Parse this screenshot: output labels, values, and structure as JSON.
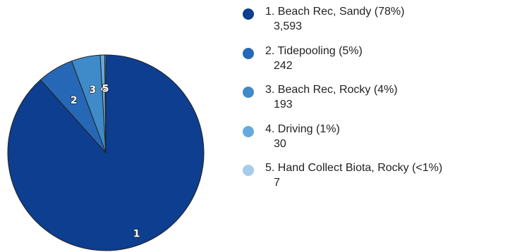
{
  "chart_data": {
    "type": "pie",
    "slices": [
      {
        "index": "1",
        "label": "Beach Rec, Sandy",
        "percent_label": "78%",
        "value": 3593,
        "value_label": "3,593",
        "color": "#0d3e8f"
      },
      {
        "index": "2",
        "label": "Tidepooling",
        "percent_label": "5%",
        "value": 242,
        "value_label": "242",
        "color": "#2668b5"
      },
      {
        "index": "3",
        "label": "Beach Rec, Rocky",
        "percent_label": "4%",
        "value": 193,
        "value_label": "193",
        "color": "#3f8ac8"
      },
      {
        "index": "4",
        "label": "Driving",
        "percent_label": "1%",
        "value": 30,
        "value_label": "30",
        "color": "#66aadd"
      },
      {
        "index": "5",
        "label": "Hand Collect Biota, Rocky",
        "percent_label": "<1%",
        "value": 7,
        "value_label": "7",
        "color": "#a5ccea"
      }
    ],
    "legend_position": "right",
    "slice_outline_color": "#222222"
  }
}
